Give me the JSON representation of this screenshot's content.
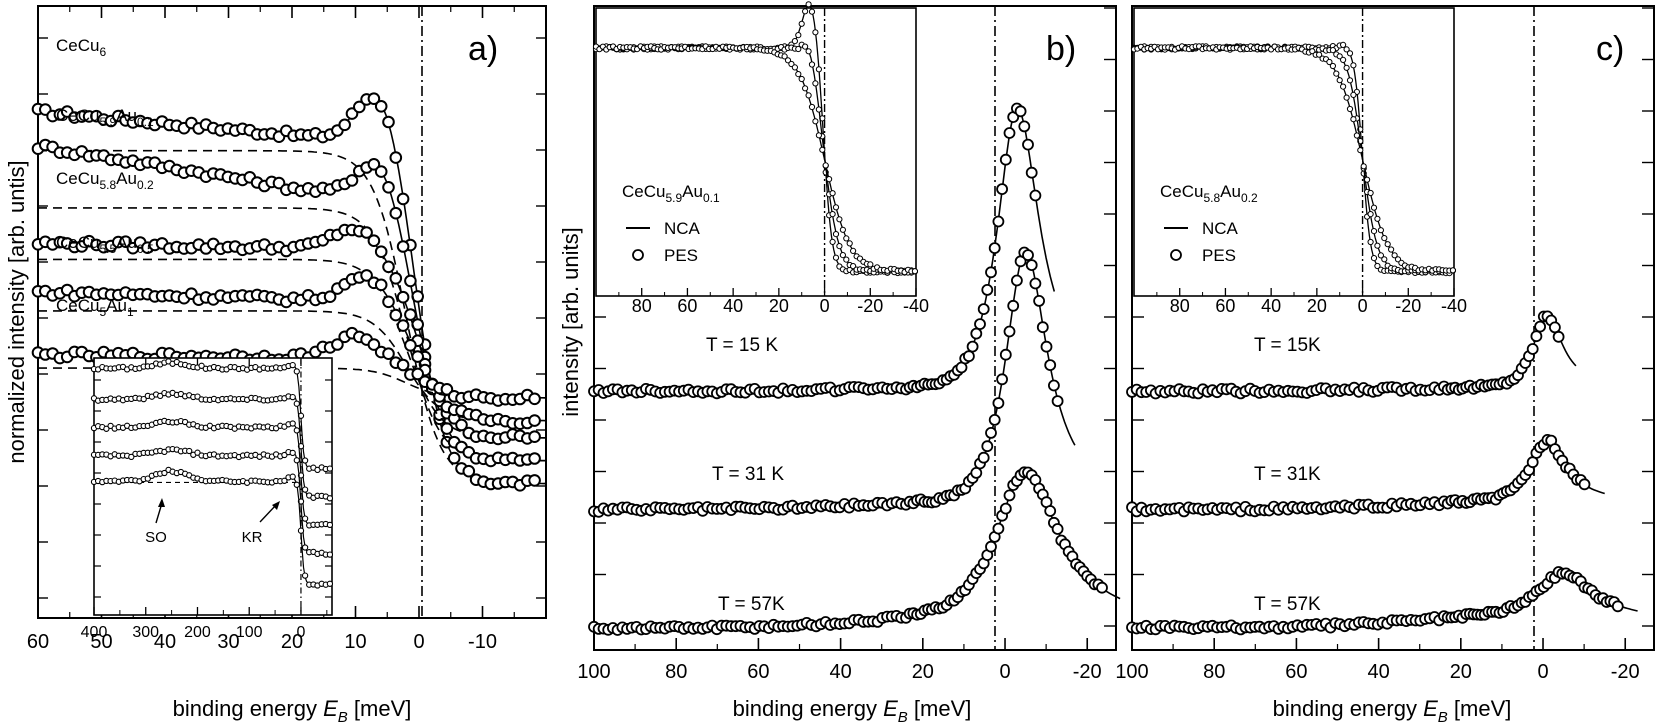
{
  "chart_data": [
    {
      "type": "scatter",
      "panel_label": "a)",
      "xlabel_prefix": "binding energy ",
      "xlabel_var": "E",
      "xlabel_sub": "B",
      "xlabel_suffix": " [meV]",
      "ylabel": "normalized intensity  [arb. untis]",
      "xlim": [
        60,
        -20
      ],
      "x_ticks": [
        "60",
        "50",
        "40",
        "30",
        "20",
        "10",
        "0",
        "-10"
      ],
      "x_tick_values": [
        60,
        50,
        40,
        30,
        20,
        10,
        0,
        -10
      ],
      "fermi_level": 0,
      "series": [
        {
          "base": "CeCu",
          "sub1": "6",
          "mid": "",
          "sub2": "",
          "level": 0.8,
          "step": 0.6,
          "peak_x": 6,
          "peak_h": 0.11,
          "edge": 2.2,
          "bg_slope": 0.001
        },
        {
          "base": "CeCu",
          "sub1": "5.9",
          "mid": "Au",
          "sub2": "0.1",
          "level": 0.7,
          "step": 0.46,
          "peak_x": 6,
          "peak_h": 0.09,
          "edge": 2.3,
          "bg_slope": 0.0018
        },
        {
          "base": "CeCu",
          "sub1": "5.8",
          "mid": "Au",
          "sub2": "0.2",
          "level": 0.61,
          "step": 0.33,
          "peak_x": 10,
          "peak_h": 0.04,
          "edge": 2.4,
          "bg_slope": 0.0002
        },
        {
          "base": "CeCu",
          "sub1": "5.5",
          "mid": "Au",
          "sub2": "0.5",
          "level": 0.52,
          "step": 0.21,
          "peak_x": 8,
          "peak_h": 0.05,
          "edge": 2.4,
          "bg_slope": 0.0003
        },
        {
          "base": "CeCu",
          "sub1": "5",
          "mid": "Au",
          "sub2": "1",
          "level": 0.42,
          "step": 0.07,
          "peak_x": 10,
          "peak_h": 0.04,
          "edge": 2.4,
          "bg_slope": 0.0001
        }
      ],
      "inset": {
        "xlim": [
          400,
          -60
        ],
        "x_ticks": [
          "400",
          "300",
          "200",
          "100",
          "0"
        ],
        "x_tick_values": [
          400,
          300,
          200,
          100,
          0
        ],
        "annotations": [
          {
            "text": "SO",
            "x": 250
          },
          {
            "text": "KR",
            "x": 15
          }
        ]
      }
    },
    {
      "type": "scatter",
      "panel_label": "b)",
      "xlabel_prefix": "binding energy ",
      "xlabel_var": "E",
      "xlabel_sub": "B",
      "xlabel_suffix": "  [meV]",
      "ylabel": "intensity  [arb. units]",
      "xlim": [
        100,
        -27
      ],
      "x_ticks": [
        "100",
        "80",
        "60",
        "40",
        "20",
        "0",
        "-20"
      ],
      "x_tick_values": [
        100,
        80,
        60,
        40,
        20,
        0,
        -20
      ],
      "fermi_level": 0,
      "series": [
        {
          "label": "T = 15 K",
          "base_level": 0.4,
          "peak_x": -3,
          "peak_h": 0.47,
          "width": 6.5,
          "end_x": -8
        },
        {
          "label": "T = 31 K",
          "base_level": 0.2,
          "peak_x": -5,
          "peak_h": 0.42,
          "width": 6.5,
          "end_x": -13
        },
        {
          "label": "T = 57K",
          "base_level": 0.0,
          "peak_x": -5,
          "peak_h": 0.24,
          "width": 9.5,
          "end_x": -24
        }
      ],
      "inset": {
        "compound_base": "CeCu",
        "compound_sub1": "5.9",
        "compound_mid": "Au",
        "compound_sub2": "0.1",
        "legend": [
          "NCA",
          "PES"
        ],
        "xlim": [
          100,
          -40
        ],
        "x_ticks": [
          "80",
          "60",
          "40",
          "20",
          "0",
          "-20",
          "-40"
        ],
        "x_tick_values": [
          80,
          60,
          40,
          20,
          0,
          -20,
          -40
        ]
      }
    },
    {
      "type": "scatter",
      "panel_label": "c)",
      "xlabel_prefix": "binding energy ",
      "xlabel_var": "E",
      "xlabel_sub": "B",
      "xlabel_suffix": "  [meV]",
      "ylabel": "",
      "xlim": [
        100,
        -27
      ],
      "x_ticks": [
        "100",
        "80",
        "60",
        "40",
        "20",
        "0",
        "-20"
      ],
      "x_tick_values": [
        100,
        80,
        60,
        40,
        20,
        0,
        -20
      ],
      "fermi_level": 0,
      "series": [
        {
          "label": "T = 15K",
          "base_level": 0.4,
          "peak_x": -1,
          "peak_h": 0.12,
          "width": 4.5,
          "end_x": -4
        },
        {
          "label": "T = 31K",
          "base_level": 0.2,
          "peak_x": -1,
          "peak_h": 0.1,
          "width": 5.5,
          "end_x": -11
        },
        {
          "label": "T = 57K",
          "base_level": 0.0,
          "peak_x": -5,
          "peak_h": 0.07,
          "width": 8.0,
          "end_x": -19
        }
      ],
      "inset": {
        "compound_base": "CeCu",
        "compound_sub1": "5.8",
        "compound_mid": "Au",
        "compound_sub2": "0.2",
        "legend": [
          "NCA",
          "PES"
        ],
        "xlim": [
          100,
          -40
        ],
        "x_ticks": [
          "80",
          "60",
          "40",
          "20",
          "0",
          "-20",
          "-40"
        ],
        "x_tick_values": [
          80,
          60,
          40,
          20,
          0,
          -20,
          -40
        ]
      }
    }
  ]
}
